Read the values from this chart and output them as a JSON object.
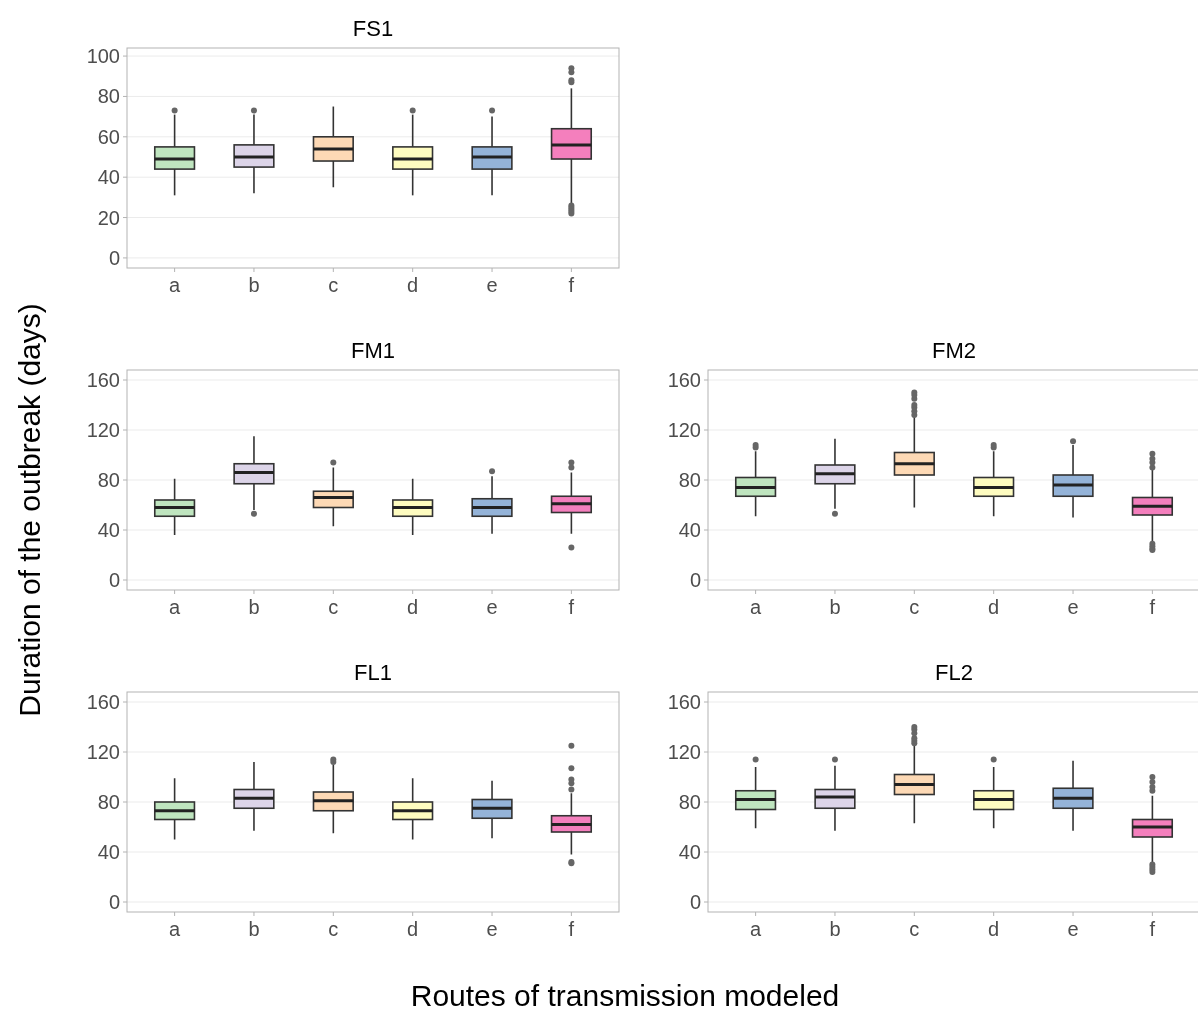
{
  "chart_data": [
    {
      "type": "box",
      "title": "FS1",
      "categories": [
        "a",
        "b",
        "c",
        "d",
        "e",
        "f"
      ],
      "colors": [
        "#bfe5bf",
        "#dcd4e8",
        "#fdd9b5",
        "#fefcc0",
        "#94b3d8",
        "#f47fbd"
      ],
      "ylim": [
        -5,
        104
      ],
      "yticks": [
        0,
        20,
        40,
        60,
        80,
        100
      ],
      "grid": "y",
      "boxes": [
        {
          "low": 31,
          "q1": 44,
          "median": 49,
          "q3": 55,
          "high": 71,
          "outliers": [
            73
          ]
        },
        {
          "low": 32,
          "q1": 45,
          "median": 50,
          "q3": 56,
          "high": 71,
          "outliers": [
            73
          ]
        },
        {
          "low": 35,
          "q1": 48,
          "median": 54,
          "q3": 60,
          "high": 75
        },
        {
          "low": 31,
          "q1": 44,
          "median": 49,
          "q3": 55,
          "high": 71,
          "outliers": [
            73
          ]
        },
        {
          "low": 31,
          "q1": 44,
          "median": 50,
          "q3": 55,
          "high": 70,
          "outliers": [
            73
          ]
        },
        {
          "low": 27,
          "q1": 49,
          "median": 56,
          "q3": 64,
          "high": 84,
          "outliers": [
            87,
            88,
            92,
            94,
            26,
            25,
            24,
            23,
            22
          ]
        }
      ]
    },
    {
      "type": "box",
      "title": "FM1",
      "ylabel": "Duration of the outbreak (days)",
      "categories": [
        "a",
        "b",
        "c",
        "d",
        "e",
        "f"
      ],
      "colors": [
        "#bfe5bf",
        "#dcd4e8",
        "#fdd9b5",
        "#fefcc0",
        "#94b3d8",
        "#f47fbd"
      ],
      "ylim": [
        -8,
        168
      ],
      "yticks": [
        0,
        40,
        80,
        120,
        160
      ],
      "grid": "y",
      "boxes": [
        {
          "low": 36,
          "q1": 51,
          "median": 58,
          "q3": 64,
          "high": 81
        },
        {
          "low": 56,
          "q1": 77,
          "median": 86,
          "q3": 93,
          "high": 115,
          "outliers": [
            53
          ]
        },
        {
          "low": 43,
          "q1": 58,
          "median": 66,
          "q3": 71,
          "high": 90,
          "outliers": [
            94
          ]
        },
        {
          "low": 36,
          "q1": 51,
          "median": 58,
          "q3": 64,
          "high": 81
        },
        {
          "low": 37,
          "q1": 51,
          "median": 58,
          "q3": 65,
          "high": 83,
          "outliers": [
            87
          ]
        },
        {
          "low": 37,
          "q1": 54,
          "median": 61,
          "q3": 67,
          "high": 86,
          "outliers": [
            90,
            94,
            26
          ]
        }
      ]
    },
    {
      "type": "box",
      "title": "FM2",
      "categories": [
        "a",
        "b",
        "c",
        "d",
        "e",
        "f"
      ],
      "colors": [
        "#bfe5bf",
        "#dcd4e8",
        "#fdd9b5",
        "#fefcc0",
        "#94b3d8",
        "#f47fbd"
      ],
      "ylim": [
        -8,
        168
      ],
      "yticks": [
        0,
        40,
        80,
        120,
        160
      ],
      "grid": "y",
      "boxes": [
        {
          "low": 51,
          "q1": 67,
          "median": 74,
          "q3": 82,
          "high": 103,
          "outliers": [
            106,
            108
          ]
        },
        {
          "low": 57,
          "q1": 77,
          "median": 85,
          "q3": 92,
          "high": 113,
          "outliers": [
            53
          ]
        },
        {
          "low": 58,
          "q1": 84,
          "median": 93,
          "q3": 102,
          "high": 131,
          "outliers": [
            132,
            135,
            138,
            140,
            145,
            148,
            150
          ]
        },
        {
          "low": 51,
          "q1": 67,
          "median": 74,
          "q3": 82,
          "high": 103,
          "outliers": [
            106,
            108
          ]
        },
        {
          "low": 50,
          "q1": 67,
          "median": 76,
          "q3": 84,
          "high": 108,
          "outliers": [
            111
          ]
        },
        {
          "low": 31,
          "q1": 52,
          "median": 59,
          "q3": 66,
          "high": 88,
          "outliers": [
            90,
            94,
            97,
            101,
            29,
            27,
            25,
            24
          ]
        }
      ]
    },
    {
      "type": "box",
      "title": "FL1",
      "xlabel": "Routes of transmission modeled",
      "categories": [
        "a",
        "b",
        "c",
        "d",
        "e",
        "f"
      ],
      "colors": [
        "#bfe5bf",
        "#dcd4e8",
        "#fdd9b5",
        "#fefcc0",
        "#94b3d8",
        "#f47fbd"
      ],
      "ylim": [
        -8,
        168
      ],
      "yticks": [
        0,
        40,
        80,
        120,
        160
      ],
      "grid": "y",
      "boxes": [
        {
          "low": 50,
          "q1": 66,
          "median": 73,
          "q3": 80,
          "high": 99
        },
        {
          "low": 57,
          "q1": 75,
          "median": 83,
          "q3": 90,
          "high": 112
        },
        {
          "low": 55,
          "q1": 73,
          "median": 81,
          "q3": 88,
          "high": 110,
          "outliers": [
            112,
            114
          ]
        },
        {
          "low": 50,
          "q1": 66,
          "median": 73,
          "q3": 80,
          "high": 99
        },
        {
          "low": 51,
          "q1": 67,
          "median": 75,
          "q3": 82,
          "high": 97
        },
        {
          "low": 38,
          "q1": 56,
          "median": 62,
          "q3": 69,
          "high": 87,
          "outliers": [
            90,
            95,
            98,
            107,
            125,
            31,
            32
          ]
        }
      ]
    },
    {
      "type": "box",
      "title": "FL2",
      "categories": [
        "a",
        "b",
        "c",
        "d",
        "e",
        "f"
      ],
      "colors": [
        "#bfe5bf",
        "#dcd4e8",
        "#fdd9b5",
        "#fefcc0",
        "#94b3d8",
        "#f47fbd"
      ],
      "ylim": [
        -8,
        168
      ],
      "yticks": [
        0,
        40,
        80,
        120,
        160
      ],
      "grid": "y",
      "boxes": [
        {
          "low": 59,
          "q1": 74,
          "median": 82,
          "q3": 89,
          "high": 108,
          "outliers": [
            114
          ]
        },
        {
          "low": 57,
          "q1": 75,
          "median": 84,
          "q3": 90,
          "high": 109,
          "outliers": [
            114
          ]
        },
        {
          "low": 63,
          "q1": 86,
          "median": 94,
          "q3": 102,
          "high": 125,
          "outliers": [
            127,
            129,
            131,
            135,
            138,
            140
          ]
        },
        {
          "low": 59,
          "q1": 74,
          "median": 82,
          "q3": 89,
          "high": 108,
          "outliers": [
            114
          ]
        },
        {
          "low": 57,
          "q1": 75,
          "median": 83,
          "q3": 91,
          "high": 113
        },
        {
          "low": 32,
          "q1": 52,
          "median": 60,
          "q3": 66,
          "high": 85,
          "outliers": [
            89,
            92,
            96,
            100,
            30,
            28,
            26,
            24
          ]
        }
      ]
    }
  ]
}
